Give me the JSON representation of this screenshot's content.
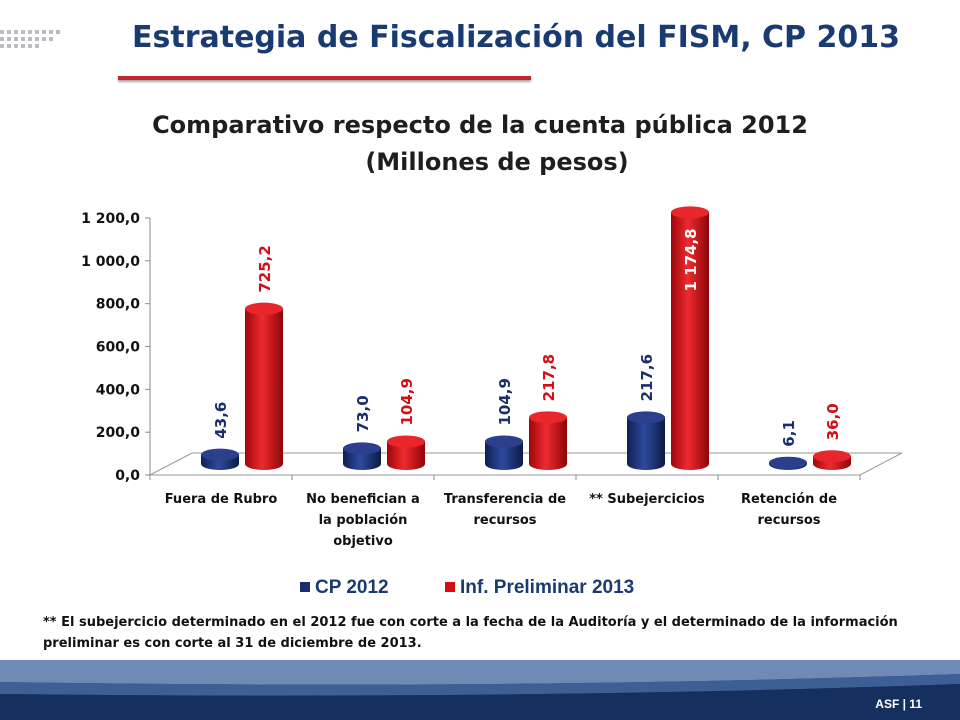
{
  "header": {
    "title": "Estrategia de Fiscalización del FISM, CP 2013"
  },
  "chart_data": {
    "type": "bar",
    "title": "Comparativo respecto de la cuenta pública 2012",
    "subtitle": "(Millones de pesos)",
    "categories": [
      [
        "Fuera de Rubro"
      ],
      [
        "No benefician a",
        "la población",
        "objetivo"
      ],
      [
        "Transferencia de",
        "recursos"
      ],
      [
        "** Subejercicios"
      ],
      [
        "Retención de",
        "recursos"
      ]
    ],
    "series": [
      {
        "name": "CP 2012",
        "values": [
          43.6,
          73.0,
          104.9,
          217.6,
          6.1
        ],
        "labels": [
          "43,6",
          "73,0",
          "104,9",
          "217,6",
          "6,1"
        ],
        "color": "#1a2e6e"
      },
      {
        "name": "Inf. Preliminar 2013",
        "values": [
          725.2,
          104.9,
          217.8,
          1174.8,
          36.0
        ],
        "labels": [
          "725,2",
          "104,9",
          "217,8",
          "1 174,8",
          "36,0"
        ],
        "color": "#d40e14"
      }
    ],
    "y_ticks": [
      "0,0",
      "200,0",
      "400,0",
      "600,0",
      "800,0",
      "1 000,0",
      "1 200,0"
    ],
    "ylim": [
      0,
      1200
    ],
    "grid": false,
    "legend_position": "bottom"
  },
  "footnote": "** El subejercicio determinado en el 2012 fue con corte a la fecha de la Auditoría y el determinado de la información preliminar es con corte al 31 de diciembre de 2013.",
  "footer": {
    "label": "ASF | 11"
  }
}
